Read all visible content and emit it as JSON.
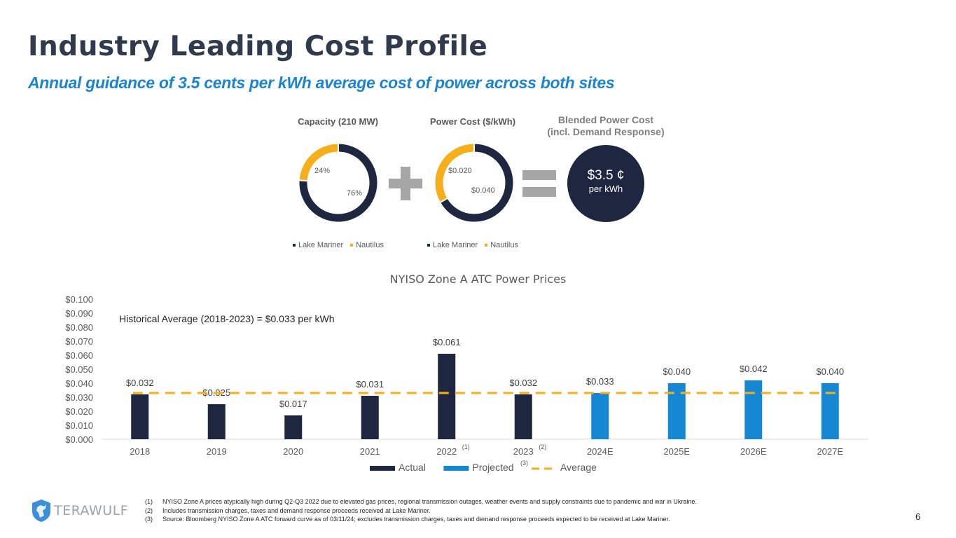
{
  "header": {
    "title": "Industry Leading Cost Profile",
    "subtitle": "Annual guidance of 3.5 cents per kWh average cost of power across both sites"
  },
  "donuts": [
    {
      "title": "Capacity (210 MW)",
      "segments": [
        {
          "name": "Lake Mariner",
          "value": 76,
          "label": "76%",
          "color": "#1f2740"
        },
        {
          "name": "Nautilus",
          "value": 24,
          "label": "24%",
          "color": "#f6ae1a"
        }
      ],
      "legend": [
        "Lake Mariner",
        "Nautilus"
      ]
    },
    {
      "title": "Power Cost ($/kWh)",
      "segments": [
        {
          "name": "Lake Mariner",
          "value": 0.04,
          "label": "$0.040",
          "color": "#1f2740"
        },
        {
          "name": "Nautilus",
          "value": 0.02,
          "label": "$0.020",
          "color": "#f6ae1a"
        }
      ],
      "legend": [
        "Lake Mariner",
        "Nautilus"
      ]
    }
  ],
  "operators": {
    "plus": "plus-icon",
    "equals": "equals-icon"
  },
  "blended": {
    "title_line1": "Blended Power Cost",
    "title_line2": "(incl. Demand Response)",
    "value": "$3.5 ¢",
    "unit": "per kWh"
  },
  "chart_data": {
    "type": "bar",
    "title": "NYISO Zone A  ATC Power Prices",
    "annotation": "Historical Average (2018-2023) = $0.033 per kWh",
    "categories": [
      "2018",
      "2019",
      "2020",
      "2021",
      "2022",
      "2023",
      "2024E",
      "2025E",
      "2026E",
      "2027E"
    ],
    "category_superscripts": [
      "",
      "",
      "",
      "",
      "(1)",
      "(2)",
      "",
      "",
      "",
      ""
    ],
    "values": [
      0.032,
      0.025,
      0.017,
      0.031,
      0.061,
      0.032,
      0.033,
      0.04,
      0.042,
      0.04
    ],
    "value_labels": [
      "$0.032",
      "$0.025",
      "$0.017",
      "$0.031",
      "$0.061",
      "$0.032",
      "$0.033",
      "$0.040",
      "$0.042",
      "$0.040"
    ],
    "series_type": [
      "Actual",
      "Actual",
      "Actual",
      "Actual",
      "Actual",
      "Actual",
      "Projected",
      "Projected",
      "Projected",
      "Projected"
    ],
    "average": 0.033,
    "ylim": [
      0,
      0.1
    ],
    "yticks": [
      "$0.000",
      "$0.010",
      "$0.020",
      "$0.030",
      "$0.040",
      "$0.050",
      "$0.060",
      "$0.070",
      "$0.080",
      "$0.090",
      "$0.100"
    ],
    "legend": [
      {
        "name": "Actual",
        "color": "#1f2740",
        "kind": "bar"
      },
      {
        "name": "Projected",
        "color": "#1587d3",
        "kind": "bar",
        "superscript": "(3)"
      },
      {
        "name": "Average",
        "color": "#f6ae1a",
        "kind": "dashed-line"
      }
    ],
    "legend_position": "bottom",
    "grid": false,
    "xlabel": "",
    "ylabel": ""
  },
  "footnotes": [
    {
      "num": "(1)",
      "text": "NYISO Zone A prices atypically high during Q2-Q3 2022 due to elevated gas prices, regional transmission outages, weather events and supply constraints due to pandemic and war in Ukraine."
    },
    {
      "num": "(2)",
      "text": "Includes transmission charges, taxes and demand response proceeds received at Lake Mariner."
    },
    {
      "num": "(3)",
      "text": "Source: Bloomberg NYISO Zone A ATC forward curve as of 03/11/24; excludes transmission charges, taxes and demand response proceeds expected to be received at Lake Mariner."
    }
  ],
  "footer": {
    "logo_text": "TERAWULF",
    "page_number": "6"
  }
}
